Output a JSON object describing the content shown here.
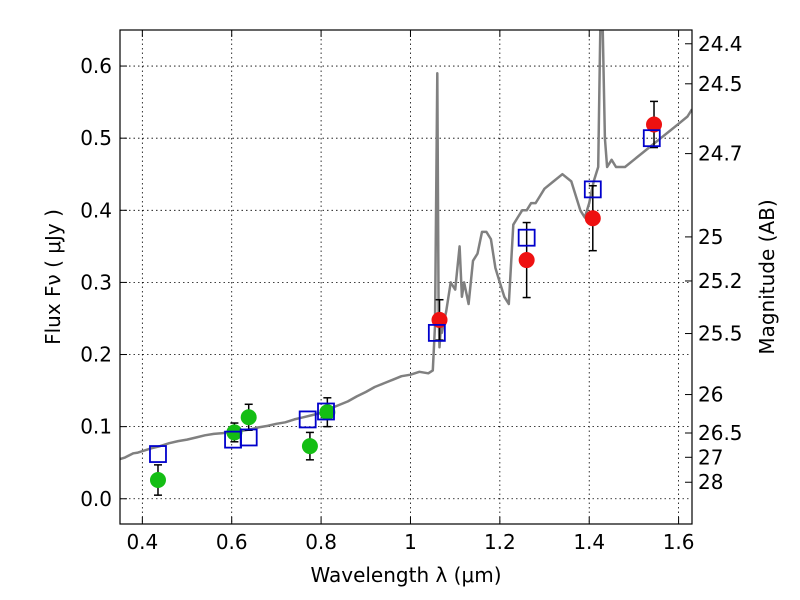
{
  "chart_data": {
    "type": "scatter",
    "title": "",
    "xlabel": "Wavelength  λ (μm)",
    "ylabel": "Flux  Fν  ( μJy )",
    "ylabel_right": "Magnitude (AB)",
    "xlim": [
      0.35,
      1.63
    ],
    "ylim": [
      -0.035,
      0.65
    ],
    "x_ticks": [
      0.4,
      0.6,
      0.8,
      1.0,
      1.2,
      1.4,
      1.6
    ],
    "x_tick_labels": [
      "0.4",
      "0.6",
      "0.8",
      "1",
      "1.2",
      "1.4",
      "1.6"
    ],
    "y_ticks": [
      0.0,
      0.1,
      0.2,
      0.3,
      0.4,
      0.5,
      0.6
    ],
    "y_tick_labels": [
      "0.0",
      "0.1",
      "0.2",
      "0.3",
      "0.4",
      "0.5",
      "0.6"
    ],
    "right_ticks": [
      {
        "flux": 0.6309,
        "label": "24.4"
      },
      {
        "flux": 0.5754,
        "label": "24.5"
      },
      {
        "flux": 0.4786,
        "label": "24.7"
      },
      {
        "flux": 0.3631,
        "label": "25"
      },
      {
        "flux": 0.302,
        "label": "25.2"
      },
      {
        "flux": 0.2291,
        "label": "25.5"
      },
      {
        "flux": 0.1445,
        "label": "26"
      },
      {
        "flux": 0.0912,
        "label": "26.5"
      },
      {
        "flux": 0.0575,
        "label": "27"
      },
      {
        "flux": 0.0229,
        "label": "28"
      }
    ],
    "grid": true,
    "colors": {
      "model": "#808080",
      "green": "#14be14",
      "red": "#ee1111",
      "model_box": "#0000cc",
      "errorbar": "#000000"
    },
    "model_spectrum": {
      "x": [
        0.35,
        0.36,
        0.37,
        0.38,
        0.39,
        0.4,
        0.42,
        0.44,
        0.46,
        0.48,
        0.5,
        0.52,
        0.54,
        0.56,
        0.58,
        0.6,
        0.62,
        0.64,
        0.66,
        0.68,
        0.7,
        0.72,
        0.74,
        0.76,
        0.78,
        0.8,
        0.82,
        0.84,
        0.86,
        0.88,
        0.9,
        0.92,
        0.94,
        0.96,
        0.98,
        1.0,
        1.02,
        1.04,
        1.05,
        1.055,
        1.06,
        1.063,
        1.065,
        1.068,
        1.07,
        1.08,
        1.09,
        1.1,
        1.11,
        1.115,
        1.12,
        1.13,
        1.14,
        1.15,
        1.16,
        1.17,
        1.18,
        1.19,
        1.2,
        1.21,
        1.22,
        1.23,
        1.24,
        1.25,
        1.26,
        1.27,
        1.28,
        1.29,
        1.3,
        1.32,
        1.34,
        1.36,
        1.38,
        1.39,
        1.4,
        1.41,
        1.42,
        1.425,
        1.43,
        1.435,
        1.44,
        1.45,
        1.46,
        1.48,
        1.5,
        1.52,
        1.54,
        1.56,
        1.58,
        1.6,
        1.62,
        1.63
      ],
      "y": [
        0.055,
        0.057,
        0.06,
        0.063,
        0.064,
        0.066,
        0.07,
        0.073,
        0.077,
        0.08,
        0.082,
        0.085,
        0.088,
        0.09,
        0.091,
        0.093,
        0.094,
        0.096,
        0.099,
        0.101,
        0.104,
        0.106,
        0.11,
        0.113,
        0.116,
        0.119,
        0.125,
        0.13,
        0.135,
        0.142,
        0.148,
        0.155,
        0.16,
        0.165,
        0.17,
        0.172,
        0.176,
        0.174,
        0.178,
        0.24,
        0.59,
        0.26,
        0.21,
        0.24,
        0.23,
        0.26,
        0.3,
        0.29,
        0.35,
        0.28,
        0.3,
        0.27,
        0.33,
        0.34,
        0.37,
        0.37,
        0.36,
        0.32,
        0.3,
        0.28,
        0.27,
        0.38,
        0.39,
        0.4,
        0.4,
        0.41,
        0.41,
        0.42,
        0.43,
        0.44,
        0.45,
        0.44,
        0.4,
        0.39,
        0.41,
        0.44,
        0.46,
        0.66,
        0.66,
        0.5,
        0.46,
        0.47,
        0.46,
        0.46,
        0.47,
        0.48,
        0.49,
        0.5,
        0.51,
        0.52,
        0.53,
        0.54
      ]
    },
    "series": [
      {
        "marker": "green-circle",
        "x": [
          0.435,
          0.606,
          0.638,
          0.775,
          0.814
        ],
        "y": [
          0.026,
          0.092,
          0.113,
          0.073,
          0.12
        ],
        "err": [
          0.021,
          0.013,
          0.018,
          0.019,
          0.02
        ]
      },
      {
        "marker": "red-circle",
        "x": [
          1.065,
          1.26,
          1.408,
          1.545
        ],
        "y": [
          0.248,
          0.331,
          0.389,
          0.519
        ],
        "err": [
          0.028,
          0.052,
          0.045,
          0.032
        ]
      },
      {
        "marker": "blue-square",
        "x": [
          0.435,
          0.603,
          0.638,
          0.77,
          0.811,
          1.059,
          1.26,
          1.408,
          1.54
        ],
        "y": [
          0.062,
          0.082,
          0.085,
          0.11,
          0.121,
          0.23,
          0.362,
          0.429,
          0.5
        ]
      }
    ]
  }
}
